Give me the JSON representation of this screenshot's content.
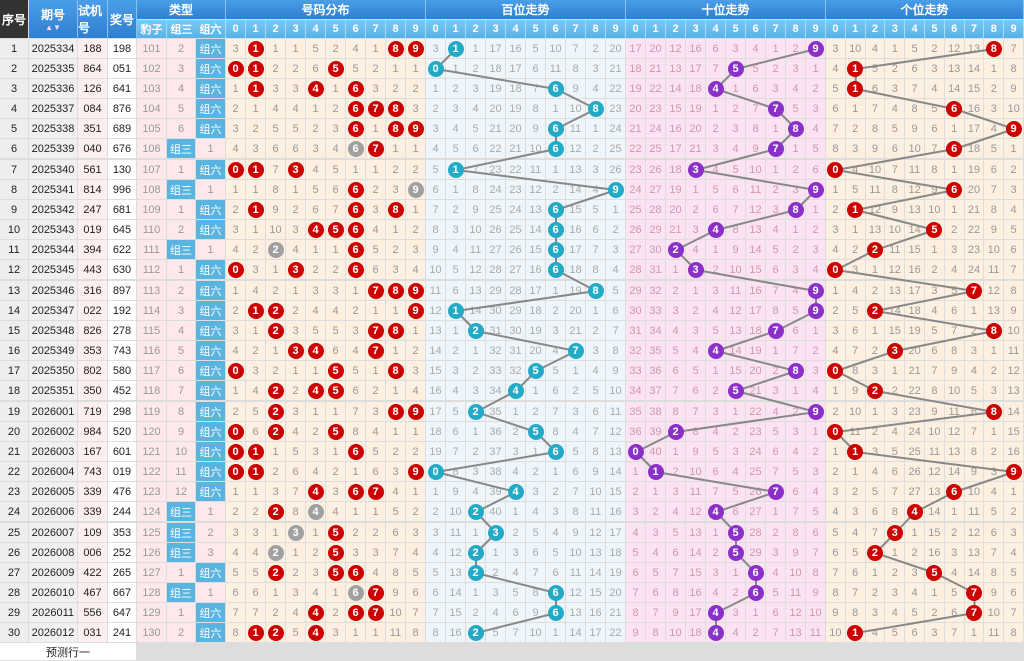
{
  "headers": {
    "index": "序号",
    "issue": "期号",
    "sort": "排序",
    "test": "试机号",
    "prize": "奖号",
    "type": "类型",
    "leopard": "豹子",
    "group3": "组三",
    "group6": "组六",
    "distribution": "号码分布",
    "hundreds": "百位走势",
    "tens": "十位走势",
    "units": "个位走势"
  },
  "digits": [
    "0",
    "1",
    "2",
    "3",
    "4",
    "5",
    "6",
    "7",
    "8",
    "9"
  ],
  "footer": "预测行一",
  "colors": {
    "header": "#2e7fd0",
    "subheader": "#56b2e6",
    "dist_hit": "#cc0000",
    "repeat_hit": "#a0a0a0",
    "hundreds_hit": "#22aac6",
    "tens_hit": "#8a2fc8",
    "units_hit": "#cc0000",
    "dist_bg": "#fdf0e0",
    "hundreds_bg": "#eef6fb",
    "tens_bg": "#fbe3f3",
    "units_bg": "#fdf0e0"
  },
  "initial_omissions": {
    "leopard": 101,
    "group3": 2,
    "distribution": [
      3,
      0,
      1,
      1,
      5,
      2,
      4,
      1,
      0,
      0
    ],
    "hundreds": [
      3,
      0,
      1,
      17,
      16,
      5,
      10,
      7,
      2,
      20
    ],
    "tens": [
      17,
      20,
      12,
      16,
      6,
      3,
      4,
      1,
      2,
      0
    ],
    "units": [
      3,
      10,
      4,
      1,
      5,
      2,
      12,
      13,
      0,
      7
    ]
  },
  "rows": [
    [
      "1",
      "2025334",
      "188",
      "198"
    ],
    [
      "2",
      "2025335",
      "864",
      "051"
    ],
    [
      "3",
      "2025336",
      "126",
      "641"
    ],
    [
      "4",
      "2025337",
      "084",
      "876"
    ],
    [
      "5",
      "2025338",
      "351",
      "689"
    ],
    [
      "6",
      "2025339",
      "040",
      "676"
    ],
    [
      "7",
      "2025340",
      "561",
      "130"
    ],
    [
      "8",
      "2025341",
      "814",
      "996"
    ],
    [
      "9",
      "2025342",
      "247",
      "681"
    ],
    [
      "10",
      "2025343",
      "019",
      "645"
    ],
    [
      "11",
      "2025344",
      "394",
      "622"
    ],
    [
      "12",
      "2025345",
      "443",
      "630"
    ],
    [
      "13",
      "2025346",
      "316",
      "897"
    ],
    [
      "14",
      "2025347",
      "022",
      "192"
    ],
    [
      "15",
      "2025348",
      "826",
      "278"
    ],
    [
      "16",
      "2025349",
      "353",
      "743"
    ],
    [
      "17",
      "2025350",
      "802",
      "580"
    ],
    [
      "18",
      "2025351",
      "350",
      "452"
    ],
    [
      "19",
      "2026001",
      "719",
      "298"
    ],
    [
      "20",
      "2026002",
      "984",
      "520"
    ],
    [
      "21",
      "2026003",
      "167",
      "601"
    ],
    [
      "22",
      "2026004",
      "743",
      "019"
    ],
    [
      "23",
      "2026005",
      "339",
      "476"
    ],
    [
      "24",
      "2026006",
      "339",
      "244"
    ],
    [
      "25",
      "2026007",
      "109",
      "353"
    ],
    [
      "26",
      "2026008",
      "006",
      "252"
    ],
    [
      "27",
      "2026009",
      "422",
      "265"
    ],
    [
      "28",
      "2026010",
      "467",
      "667"
    ],
    [
      "29",
      "2026011",
      "556",
      "647"
    ],
    [
      "30",
      "2026012",
      "031",
      "241"
    ]
  ]
}
